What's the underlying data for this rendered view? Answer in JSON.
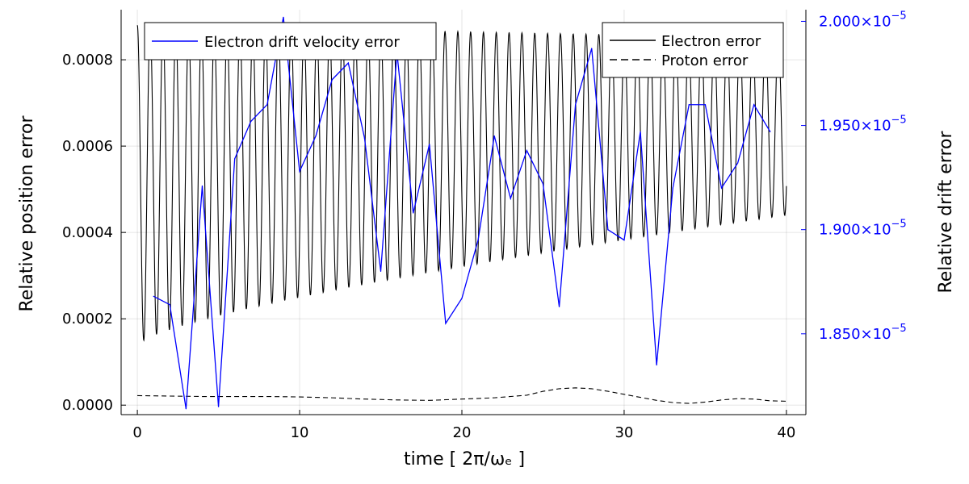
{
  "chart_data": {
    "type": "line",
    "xlabel": "time [ 2π/ωₑ ]",
    "ylabel_left": "Relative position error",
    "ylabel_right": "Relative drift error",
    "xlim": [
      -1,
      41.2
    ],
    "ylim_left": [
      -2.2e-05,
      0.000916
    ],
    "ylim_right": [
      1.8112e-05,
      2.0056e-05
    ],
    "x_ticks": [
      0,
      10,
      20,
      30,
      40
    ],
    "y_ticks_left": [
      {
        "value": 0.0,
        "label": "0.0000"
      },
      {
        "value": 0.0002,
        "label": "0.0002"
      },
      {
        "value": 0.0004,
        "label": "0.0004"
      },
      {
        "value": 0.0006,
        "label": "0.0006"
      },
      {
        "value": 0.0008,
        "label": "0.0008"
      }
    ],
    "y_ticks_right": [
      {
        "value": 1.85e-05,
        "mantissa": "1.850",
        "base": "×10",
        "exp": "−5"
      },
      {
        "value": 1.9e-05,
        "mantissa": "1.900",
        "base": "×10",
        "exp": "−5"
      },
      {
        "value": 1.95e-05,
        "mantissa": "1.950",
        "base": "×10",
        "exp": "−5"
      },
      {
        "value": 2e-05,
        "mantissa": "2.000",
        "base": "×10",
        "exp": "−5"
      }
    ],
    "grid": true,
    "colors": {
      "electron": "#000000",
      "proton": "#000000",
      "drift": "#0000ff"
    },
    "legend_right": {
      "placement": "top-right",
      "entries": [
        {
          "label": "Electron error",
          "style": "solid"
        },
        {
          "label": "Proton error",
          "style": "dashed"
        }
      ]
    },
    "legend_left": {
      "placement": "top-left",
      "entries": [
        {
          "label": "Electron drift velocity error",
          "style": "solid"
        }
      ]
    },
    "electron_error": {
      "name": "Electron error",
      "axis": "left",
      "period": 0.79,
      "x_range": [
        0,
        40
      ],
      "peak_start": 0.00088,
      "peak_end": 0.00085,
      "trough_x": [
        0.5,
        40
      ],
      "trough_y": [
        0.00015,
        0.00044
      ]
    },
    "proton_error": {
      "name": "Proton error",
      "axis": "left",
      "x": [
        0,
        2,
        4,
        6,
        8,
        10,
        12,
        14,
        16,
        18,
        20,
        22,
        24,
        25,
        26,
        27,
        28,
        29,
        30,
        31,
        32,
        33,
        34,
        35,
        36,
        37,
        38,
        39,
        40
      ],
      "y": [
        2.2e-05,
        2.1e-05,
        2e-05,
        2e-05,
        2e-05,
        1.9e-05,
        1.7e-05,
        1.4e-05,
        1.2e-05,
        1.1e-05,
        1.4e-05,
        1.7e-05,
        2.3e-05,
        3.2e-05,
        3.8e-05,
        4e-05,
        3.8e-05,
        3.2e-05,
        2.5e-05,
        1.8e-05,
        1.1e-05,
        6e-06,
        4e-06,
        7e-06,
        1.2e-05,
        1.5e-05,
        1.4e-05,
        1e-05,
        9e-06
      ]
    },
    "drift_error": {
      "name": "Electron drift velocity error",
      "axis": "right",
      "x": [
        1,
        2,
        3,
        4,
        5,
        6,
        7,
        8,
        9,
        10,
        11,
        12,
        13,
        14,
        15,
        16,
        17,
        18,
        19,
        20,
        21,
        22,
        23,
        24,
        25,
        26,
        27,
        28,
        29,
        30,
        31,
        32,
        33,
        34,
        35,
        36,
        37,
        38,
        39
      ],
      "y": [
        1.868e-05,
        1.864e-05,
        1.814e-05,
        1.921e-05,
        1.815e-05,
        1.934e-05,
        1.952e-05,
        1.96e-05,
        2.002e-05,
        1.928e-05,
        1.945e-05,
        1.972e-05,
        1.98e-05,
        1.944e-05,
        1.88e-05,
        1.985e-05,
        1.908e-05,
        1.941e-05,
        1.855e-05,
        1.867e-05,
        1.895e-05,
        1.945e-05,
        1.915e-05,
        1.938e-05,
        1.922e-05,
        1.863e-05,
        1.96e-05,
        1.987e-05,
        1.9e-05,
        1.895e-05,
        1.947e-05,
        1.835e-05,
        1.92e-05,
        1.96e-05,
        1.96e-05,
        1.92e-05,
        1.932e-05,
        1.96e-05,
        1.947e-05
      ]
    }
  }
}
